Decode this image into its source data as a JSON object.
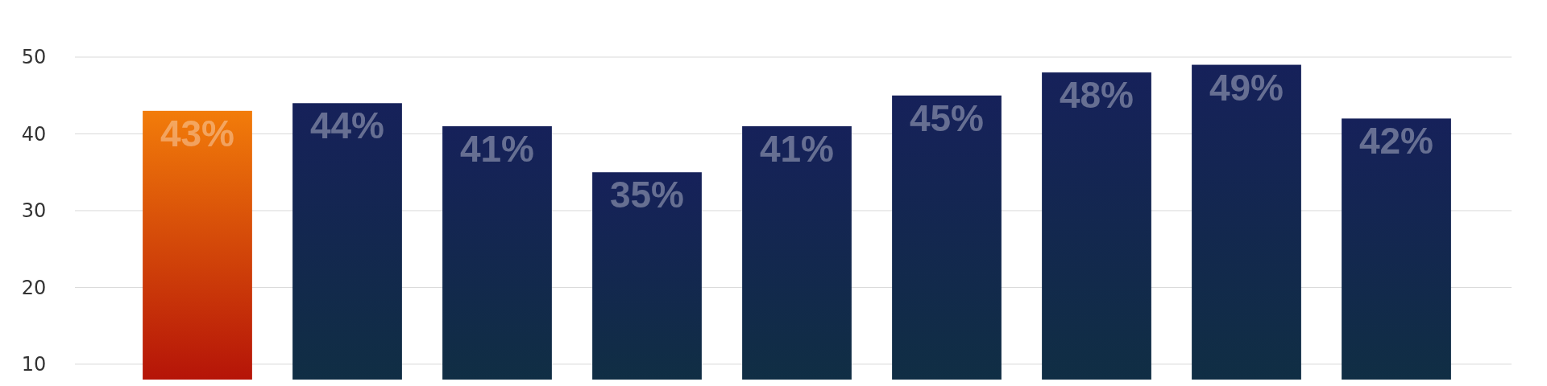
{
  "chart_data": {
    "type": "bar",
    "categories": [
      null,
      null,
      null,
      null,
      null,
      null,
      null,
      null,
      null
    ],
    "values": [
      43,
      44,
      41,
      35,
      41,
      45,
      48,
      49,
      42
    ],
    "colors": [
      "#f27c0a",
      "#16215a",
      "#16215a",
      "#16215a",
      "#16215a",
      "#16215a",
      "#16215a",
      "#16215a",
      "#16215a"
    ],
    "value_labels": [
      "43%",
      "44%",
      "41%",
      "35%",
      "41%",
      "45%",
      "48%",
      "49%",
      "42%"
    ],
    "ylim": [
      8,
      50
    ],
    "yticks": [
      10,
      20,
      30,
      40,
      50
    ],
    "grid": "y"
  }
}
